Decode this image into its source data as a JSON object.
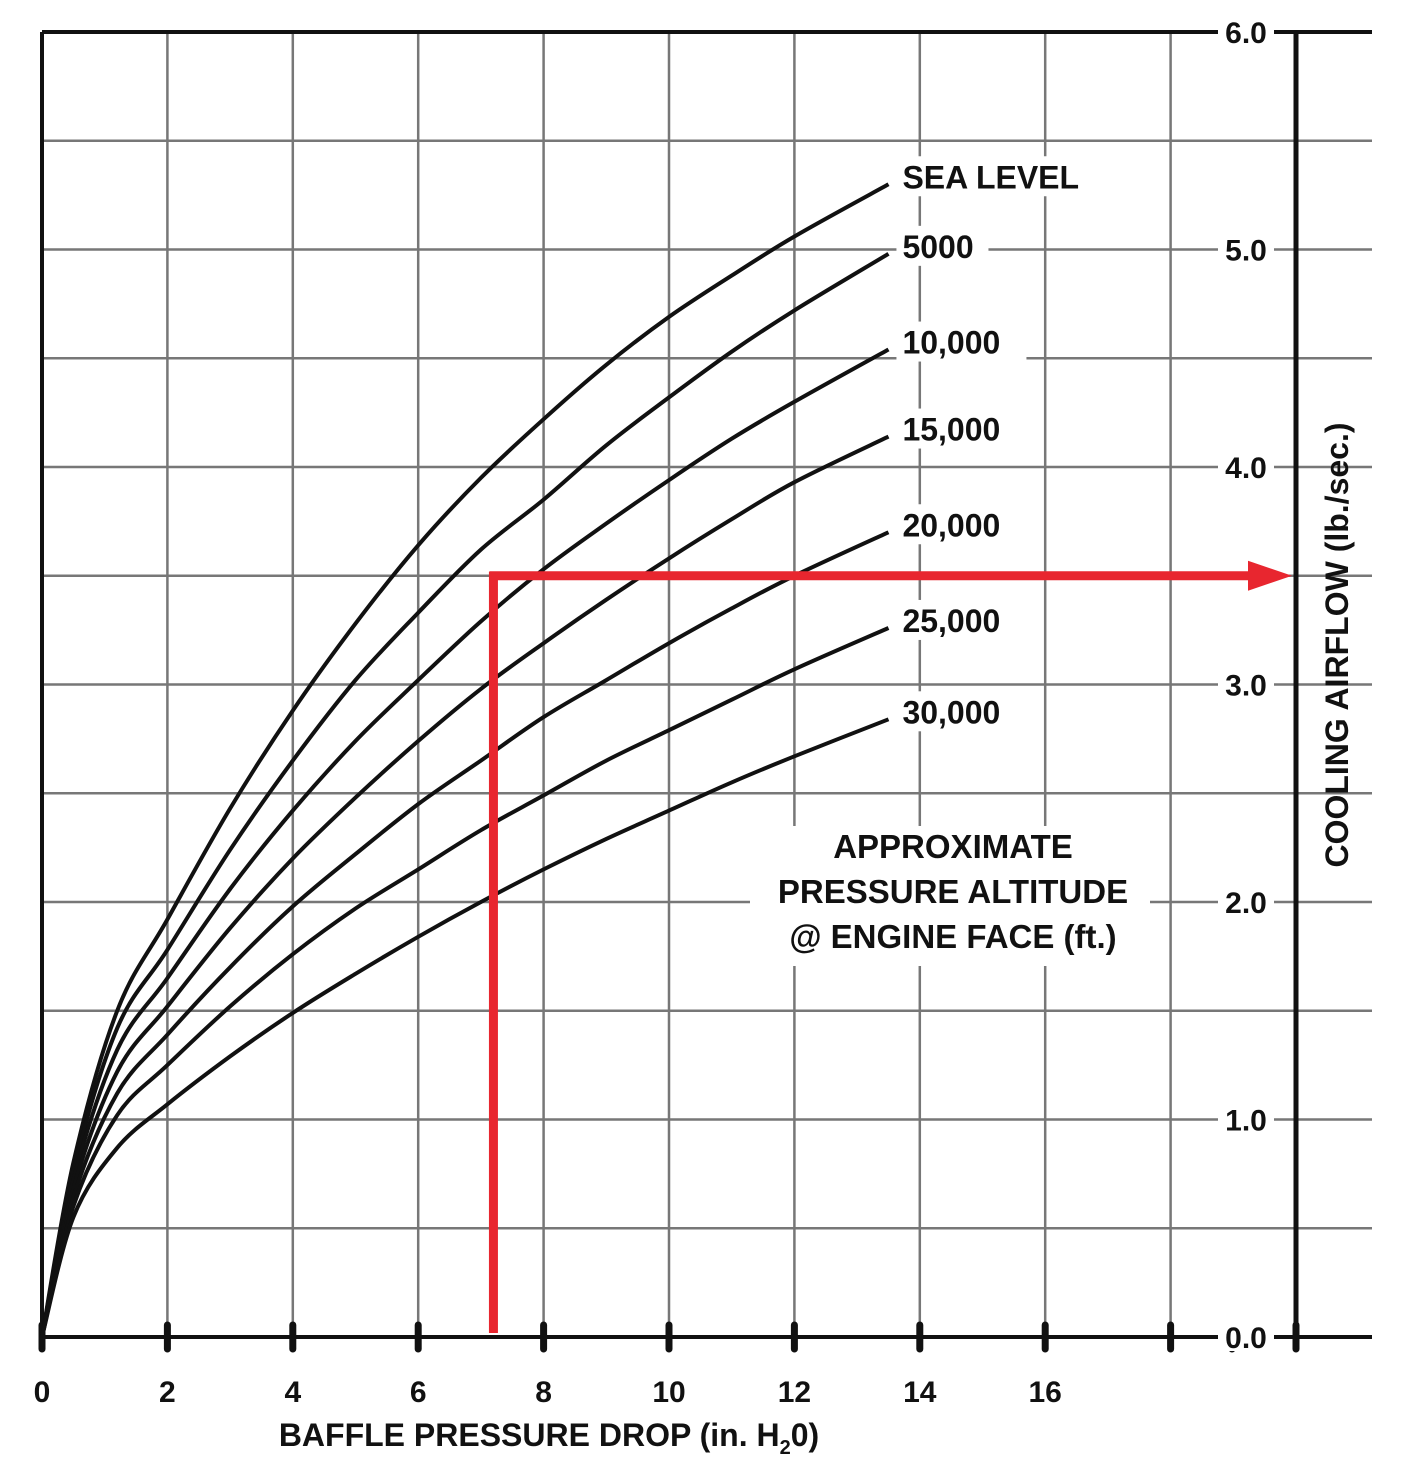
{
  "chart_data": {
    "type": "line",
    "title": "",
    "xlabel": "BAFFLE PRESSURE DROP (in. H",
    "xlabel_sub": "2",
    "xlabel_tail": "0)",
    "ylabel": "COOLING AIRFLOW (lb./sec.)",
    "xlim": [
      0,
      20
    ],
    "ylim": [
      0,
      6
    ],
    "grid": true,
    "x_ticks": [
      "0",
      "2",
      "4",
      "6",
      "8",
      "10",
      "12",
      "14",
      "16"
    ],
    "y_ticks": [
      "0.0",
      "1.0",
      "2.0",
      "3.0",
      "4.0",
      "5.0",
      "6.0"
    ],
    "series": [
      {
        "name": "SEA LEVEL",
        "x": [
          0,
          0.5,
          1.2,
          2,
          3,
          4,
          5,
          6,
          7,
          8,
          9,
          10,
          11,
          12,
          13.5
        ],
        "y": [
          0,
          0.8,
          1.5,
          1.92,
          2.43,
          2.88,
          3.28,
          3.64,
          3.95,
          4.22,
          4.47,
          4.69,
          4.88,
          5.06,
          5.3
        ]
      },
      {
        "name": "5000",
        "x": [
          0,
          0.5,
          1.2,
          2,
          3,
          4,
          5,
          6,
          7,
          8,
          9,
          10,
          11,
          12,
          13.5
        ],
        "y": [
          0,
          0.76,
          1.42,
          1.78,
          2.24,
          2.65,
          3.02,
          3.33,
          3.62,
          3.85,
          4.1,
          4.32,
          4.53,
          4.72,
          4.98
        ]
      },
      {
        "name": "10,000",
        "x": [
          0,
          0.5,
          1.2,
          2,
          3,
          4,
          5,
          6,
          7,
          8,
          9,
          10,
          11,
          12,
          13.5
        ],
        "y": [
          0,
          0.72,
          1.32,
          1.65,
          2.06,
          2.42,
          2.74,
          3.02,
          3.29,
          3.53,
          3.74,
          3.94,
          4.13,
          4.3,
          4.54
        ]
      },
      {
        "name": "15,000",
        "x": [
          0,
          0.5,
          1.2,
          2,
          3,
          4,
          5,
          6,
          7,
          8,
          9,
          10,
          11,
          12,
          13.5
        ],
        "y": [
          0,
          0.68,
          1.22,
          1.52,
          1.88,
          2.2,
          2.48,
          2.74,
          2.98,
          3.19,
          3.39,
          3.58,
          3.76,
          3.93,
          4.14
        ]
      },
      {
        "name": "20,000",
        "x": [
          0,
          0.5,
          1.2,
          2,
          3,
          4,
          5,
          6,
          7,
          8,
          9,
          10,
          11,
          12,
          13.5
        ],
        "y": [
          0,
          0.64,
          1.12,
          1.39,
          1.7,
          1.98,
          2.22,
          2.45,
          2.65,
          2.85,
          3.02,
          3.19,
          3.35,
          3.5,
          3.7
        ]
      },
      {
        "name": "25,000",
        "x": [
          0,
          0.5,
          1.2,
          2,
          3,
          4,
          5,
          6,
          7,
          8,
          9,
          10,
          11,
          12,
          13.5
        ],
        "y": [
          0,
          0.6,
          1.02,
          1.25,
          1.52,
          1.76,
          1.97,
          2.15,
          2.33,
          2.49,
          2.65,
          2.79,
          2.93,
          3.07,
          3.26
        ]
      },
      {
        "name": "30,000",
        "x": [
          0,
          0.5,
          1.2,
          2,
          3,
          4,
          5,
          6,
          7,
          8,
          9,
          10,
          11,
          12,
          13.5
        ],
        "y": [
          0,
          0.55,
          0.87,
          1.07,
          1.29,
          1.49,
          1.67,
          1.84,
          2.0,
          2.15,
          2.29,
          2.42,
          2.55,
          2.67,
          2.84
        ]
      }
    ],
    "example_path": {
      "x": 7.2,
      "y": 3.5,
      "color": "#e8262f"
    },
    "annotation": [
      "APPROXIMATE",
      "PRESSURE ALTITUDE",
      "@ ENGINE FACE (ft.)"
    ]
  }
}
